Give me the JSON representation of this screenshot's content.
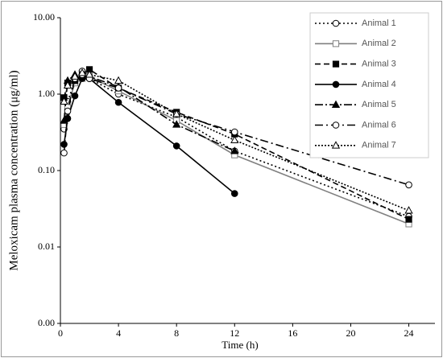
{
  "chart_data": {
    "type": "line",
    "y_axis_label": "Meloxicam plasma concentration (μg/ml)",
    "x_axis_label": "Time (h)",
    "log_y": true,
    "grid": false,
    "legend": "upper right",
    "x": [
      0.25,
      0.5,
      1,
      1.5,
      2,
      4,
      8,
      12,
      24
    ],
    "xlim": [
      0,
      25.8
    ],
    "xticks": [
      0,
      4,
      8,
      12,
      16,
      20,
      24
    ],
    "ylim": [
      0.001,
      10
    ],
    "yticks": [
      {
        "value": 10,
        "label": "10.00"
      },
      {
        "value": 1,
        "label": "1.00"
      },
      {
        "value": 0.1,
        "label": "0.10"
      },
      {
        "value": 0.01,
        "label": "0.01"
      },
      {
        "value": 0.001,
        "label": "0.00"
      }
    ],
    "series": [
      {
        "name": "Animal 1",
        "color": "#000000",
        "dash": "2,3",
        "marker": "circle",
        "marker_fill": "#ffffff",
        "values": [
          0.35,
          0.8,
          1.5,
          2.0,
          1.6,
          1.0,
          0.5,
          0.18,
          0.025
        ]
      },
      {
        "name": "Animal 2",
        "color": "#808080",
        "dash": "none",
        "marker": "square",
        "marker_fill": "#ffffff",
        "values": [
          0.4,
          0.7,
          1.4,
          1.6,
          1.7,
          1.1,
          0.45,
          0.16,
          0.02
        ]
      },
      {
        "name": "Animal 3",
        "color": "#000000",
        "dash": "7,4",
        "marker": "square",
        "marker_fill": "#000000",
        "values": [
          0.9,
          1.4,
          1.5,
          1.8,
          2.1,
          1.2,
          0.58,
          0.3,
          0.023
        ]
      },
      {
        "name": "Animal 4",
        "color": "#000000",
        "dash": "none",
        "marker": "circle",
        "marker_fill": "#000000",
        "values": [
          0.22,
          0.48,
          0.95,
          1.6,
          1.6,
          0.78,
          0.21,
          0.05,
          null
        ]
      },
      {
        "name": "Animal 5",
        "color": "#000000",
        "dash": "10,3,2,3",
        "marker": "triangle",
        "marker_fill": "#000000",
        "values": [
          0.45,
          1.5,
          1.8,
          1.7,
          1.7,
          1.25,
          0.4,
          0.18,
          null
        ]
      },
      {
        "name": "Animal 6",
        "color": "#000000",
        "dash": "10,4,2,4",
        "marker": "circle",
        "marker_fill": "#ffffff",
        "values": [
          0.17,
          0.6,
          1.6,
          1.8,
          1.6,
          1.2,
          0.55,
          0.32,
          0.065
        ]
      },
      {
        "name": "Animal 7",
        "color": "#000000",
        "dash": "2,2",
        "marker": "triangle",
        "marker_fill": "#ffffff",
        "values": [
          0.8,
          1.3,
          1.7,
          1.9,
          1.8,
          1.5,
          0.55,
          0.25,
          0.03
        ]
      }
    ]
  }
}
